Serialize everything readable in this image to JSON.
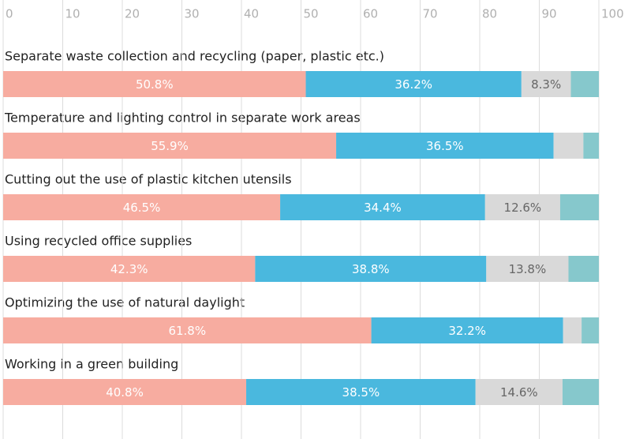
{
  "chart_data": {
    "type": "stacked-barh",
    "categories": [
      "Separate waste collection and recycling (paper, plastic etc.)",
      "Temperature and lighting control in separate work areas",
      "Cutting out the use of plastic kitchen utensils",
      "Using recycled office supplies",
      "Optimizing the use of natural daylight",
      "Working in a green building"
    ],
    "series": [
      {
        "color": "#f7aca0",
        "values": [
          50.8,
          55.9,
          46.5,
          42.3,
          61.8,
          40.8
        ],
        "value_labels": [
          "50.8%",
          "55.9%",
          "46.5%",
          "42.3%",
          "61.8%",
          "40.8%"
        ]
      },
      {
        "color": "#4ab8de",
        "values": [
          36.2,
          36.5,
          34.4,
          38.8,
          32.2,
          38.5
        ],
        "value_labels": [
          "36.2%",
          "36.5%",
          "34.4%",
          "38.8%",
          "32.2%",
          "38.5%"
        ]
      },
      {
        "color": "#d9d9d9",
        "values": [
          8.3,
          5.0,
          12.6,
          13.8,
          3.1,
          14.6
        ],
        "value_labels": [
          "8.3%",
          null,
          "12.6%",
          "13.8%",
          null,
          "14.6%"
        ]
      },
      {
        "color": "#86c8cc",
        "values": [
          4.7,
          2.6,
          6.5,
          5.1,
          2.9,
          6.1
        ]
      }
    ],
    "xlim": [
      0,
      100
    ],
    "xticks": [
      0,
      10,
      20,
      30,
      40,
      50,
      60,
      70,
      80,
      90,
      100
    ],
    "grid": true
  }
}
